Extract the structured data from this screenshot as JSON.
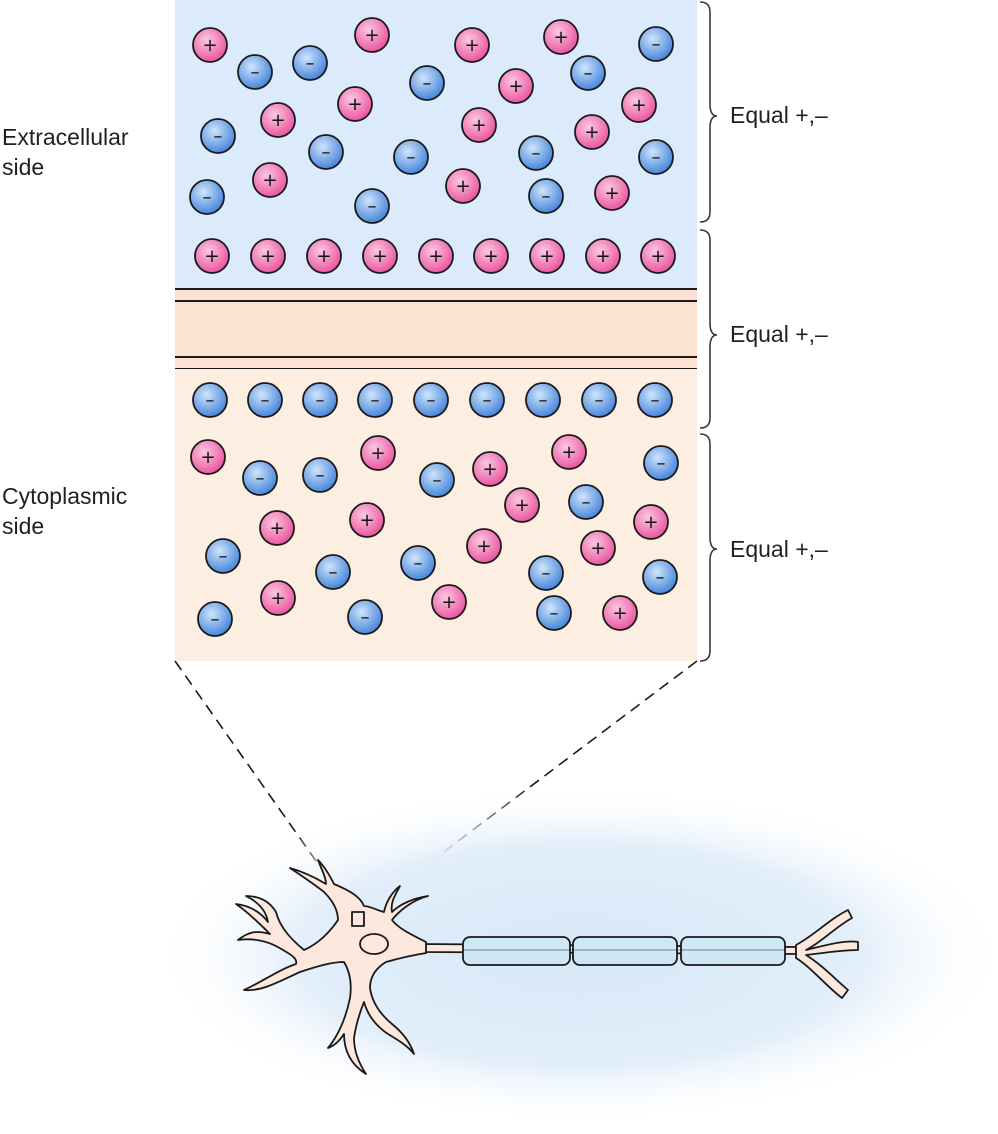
{
  "labels": {
    "extracellular": [
      "Extracellular",
      "side"
    ],
    "cytoplasmic": [
      "Cytoplasmic",
      "side"
    ],
    "braces": [
      "Equal +,–",
      "Equal +,–",
      "Equal +,–"
    ]
  },
  "ion_signs": {
    "positive": "+",
    "negative": "–"
  },
  "colors": {
    "extracellular_fill": "#dcebfb",
    "cytoplasm_fill": "#fdeee2",
    "membrane_fill": "#fbe2d2",
    "cation_fill": "#e94e9a",
    "cation_highlight": "#fbc8e2",
    "anion_fill": "#3d7fd9",
    "anion_highlight": "#cfe4fb",
    "myelin_fill": "#cde7f5",
    "glow": "#d7e8f8"
  }
}
